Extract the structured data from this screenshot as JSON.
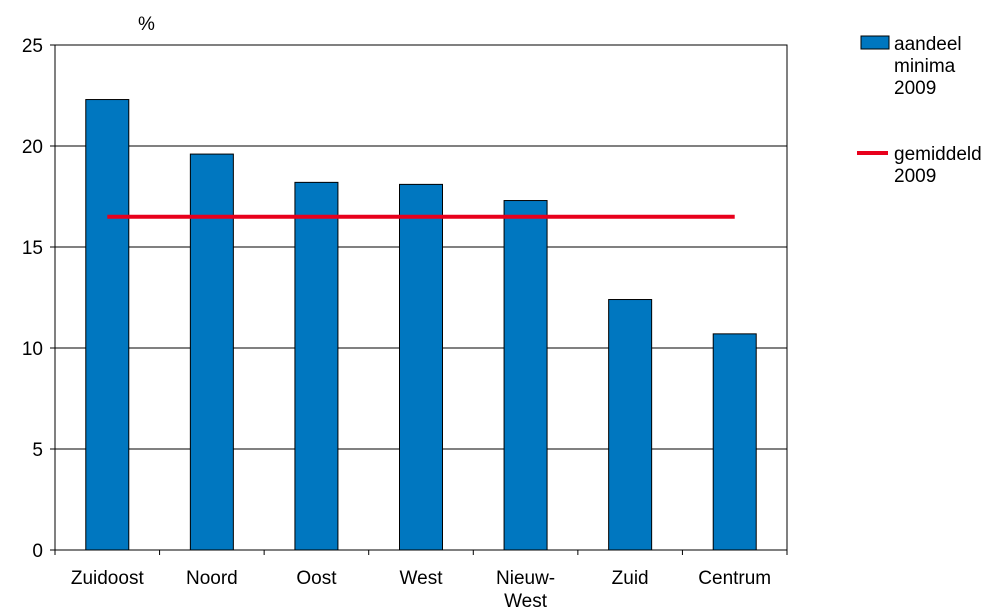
{
  "chart_data": {
    "type": "bar",
    "unit_label": "%",
    "categories": [
      "Zuidoost",
      "Noord",
      "Oost",
      "West",
      [
        "Nieuw-",
        "West"
      ],
      "Zuid",
      "Centrum"
    ],
    "series": [
      {
        "name": [
          "aandeel",
          "minima",
          "2009"
        ],
        "type": "bar",
        "color": "#0077c0",
        "values": [
          22.3,
          19.6,
          18.2,
          18.1,
          17.3,
          12.4,
          10.7
        ]
      },
      {
        "name": [
          "gemiddeld",
          "2009"
        ],
        "type": "line",
        "color": "#e8001c",
        "value": 16.5
      }
    ],
    "ylim": [
      0,
      25
    ],
    "yticks": [
      0,
      5,
      10,
      15,
      20,
      25
    ],
    "grid": true,
    "legend_position": "right"
  }
}
